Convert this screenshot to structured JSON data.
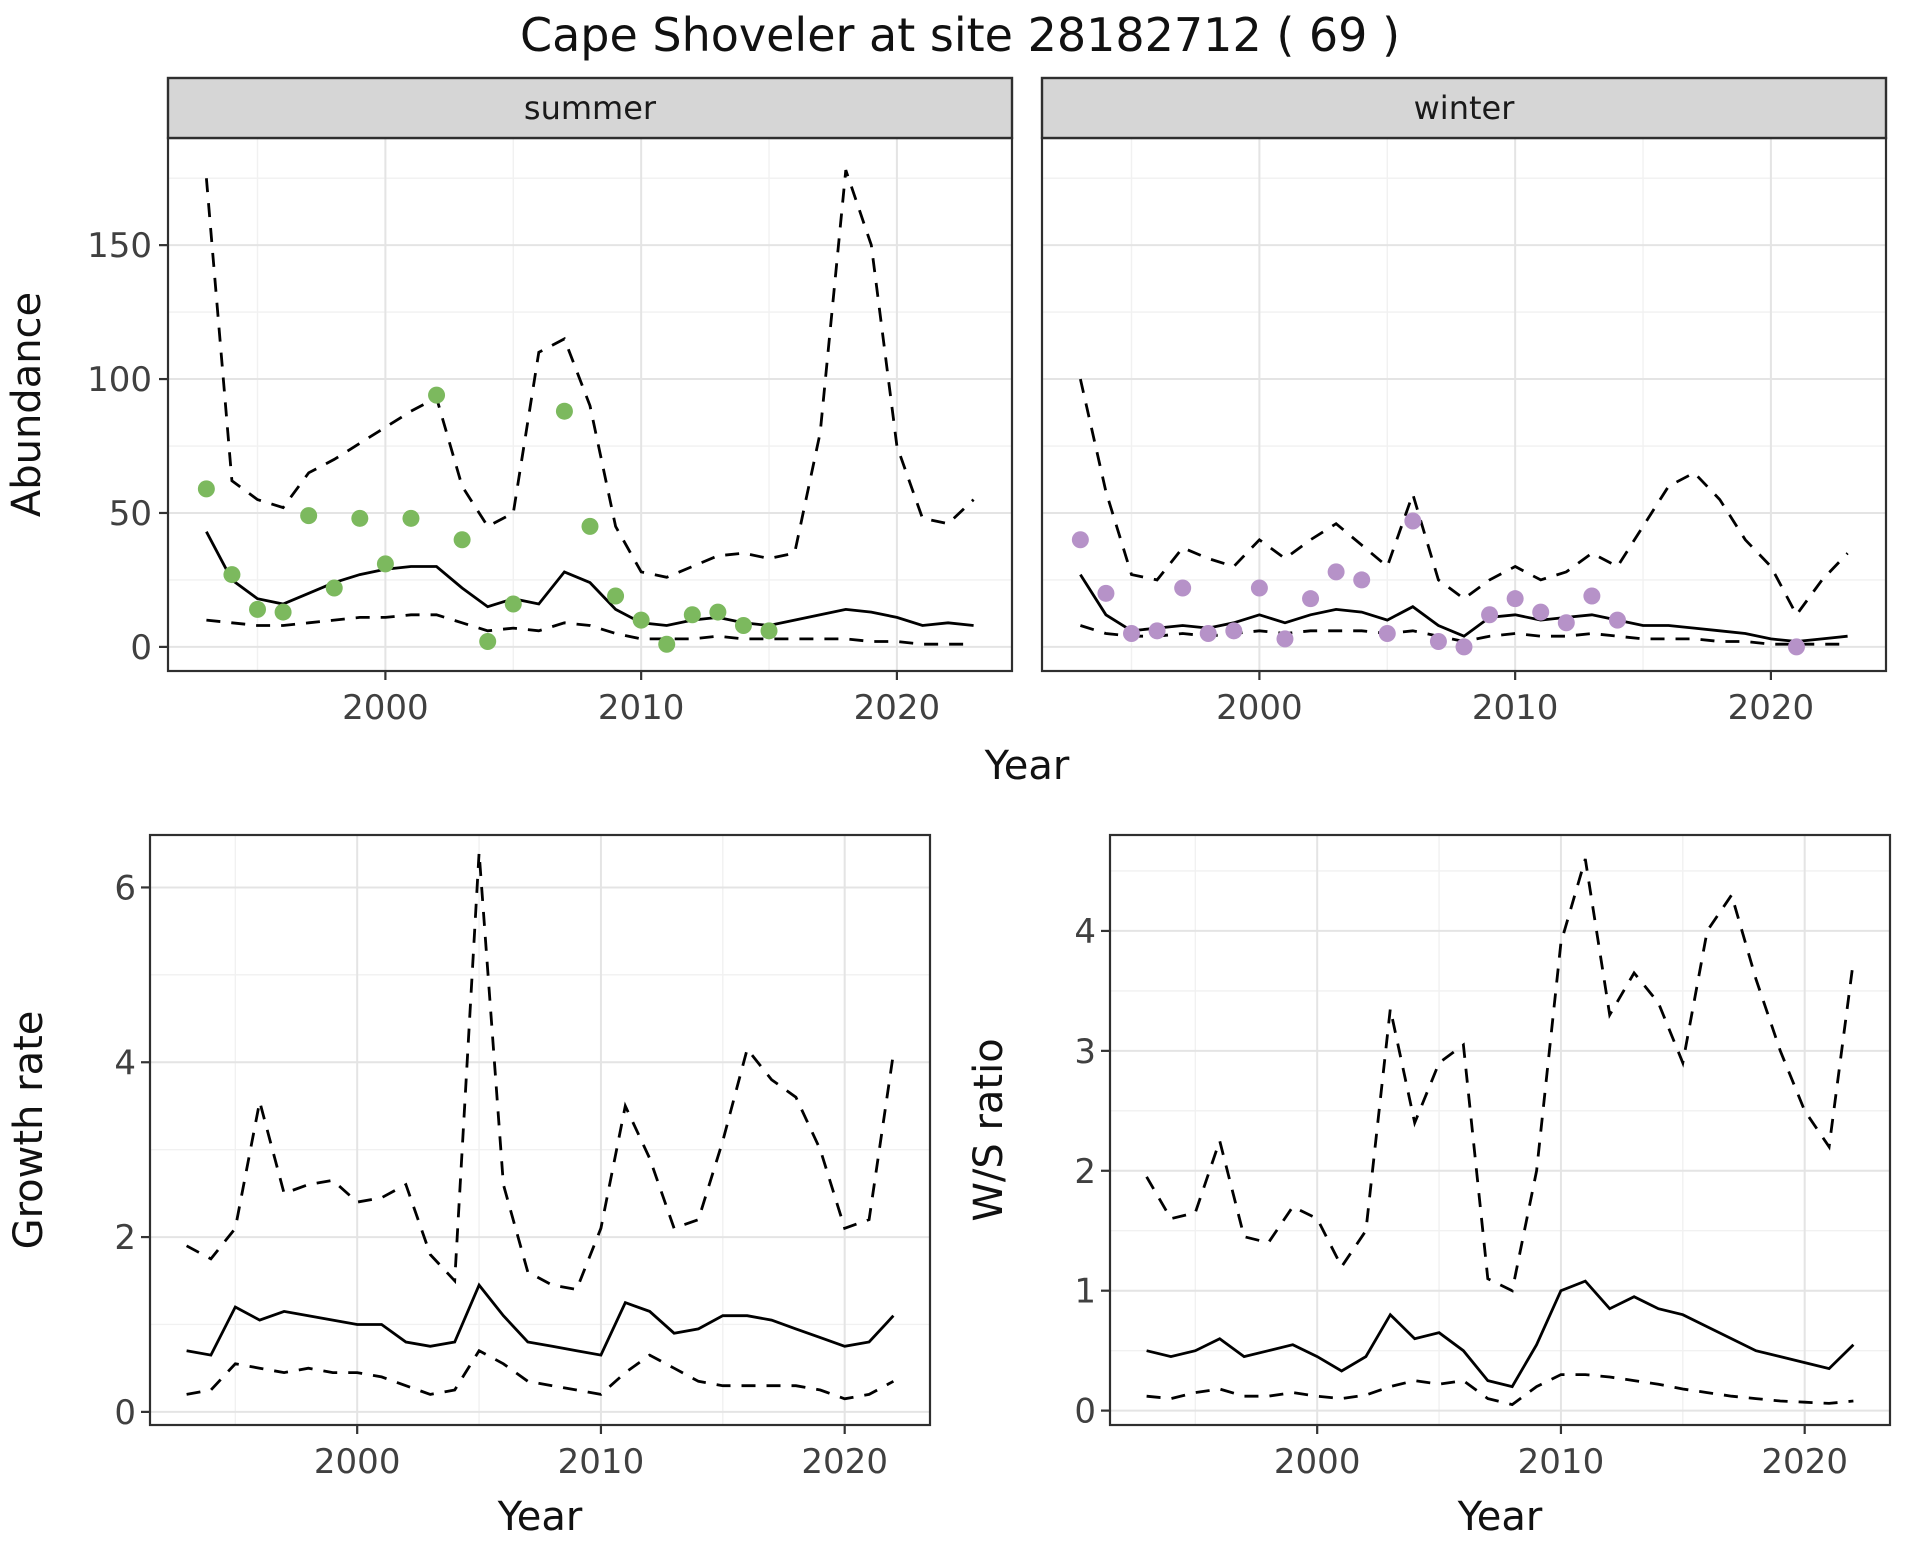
{
  "title": "Cape Shoveler at site 28182712 ( 69 )",
  "theme": {
    "strip_bg": "#d6d6d6",
    "panel_bg": "#ffffff",
    "panel_border": "#2f2f2f",
    "grid_major": "#e4e4e4",
    "grid_minor": "#f1f1f1",
    "axis_text_color": "#404040",
    "axis_title_color": "#111111",
    "line_color": "#000000",
    "summer_point_color": "#7cb95e",
    "winter_point_color": "#b692c8"
  },
  "chart_data": [
    {
      "id": "abundance",
      "type": "line",
      "xlabel": "Year",
      "ylabel": "Abundance",
      "x_ticks": [
        2000,
        2010,
        2020
      ],
      "y_ticks": [
        0,
        50,
        100,
        150
      ],
      "xlim": [
        1991.5,
        2024.5
      ],
      "ylim": [
        -9,
        190
      ],
      "grid": true,
      "legend": "none",
      "facets": [
        {
          "label": "summer",
          "x": [
            1993,
            1994,
            1995,
            1996,
            1997,
            1998,
            1999,
            2000,
            2001,
            2002,
            2003,
            2004,
            2005,
            2006,
            2007,
            2008,
            2009,
            2010,
            2011,
            2012,
            2013,
            2014,
            2015,
            2016,
            2017,
            2018,
            2019,
            2020,
            2021,
            2022,
            2023
          ],
          "fit": [
            43,
            25,
            18,
            16,
            20,
            24,
            27,
            29,
            30,
            30,
            22,
            15,
            18,
            16,
            28,
            24,
            14,
            9,
            8,
            10,
            11,
            9,
            8,
            10,
            12,
            14,
            13,
            11,
            8,
            9,
            8
          ],
          "upper": [
            175,
            62,
            55,
            52,
            65,
            70,
            76,
            82,
            88,
            93,
            60,
            45,
            50,
            110,
            115,
            90,
            45,
            28,
            26,
            30,
            34,
            35,
            33,
            35,
            80,
            178,
            150,
            75,
            48,
            46,
            55
          ],
          "lower": [
            10,
            9,
            8,
            8,
            9,
            10,
            11,
            11,
            12,
            12,
            9,
            6,
            7,
            6,
            9,
            8,
            5,
            3,
            3,
            3,
            4,
            3,
            3,
            3,
            3,
            3,
            2,
            2,
            1,
            1,
            1
          ],
          "points": {
            "x": [
              1993,
              1994,
              1995,
              1996,
              1997,
              1998,
              1999,
              2000,
              2001,
              2002,
              2003,
              2004,
              2005,
              2007,
              2008,
              2009,
              2010,
              2011,
              2012,
              2013,
              2014,
              2015
            ],
            "y": [
              59,
              27,
              14,
              13,
              49,
              22,
              48,
              31,
              48,
              94,
              40,
              2,
              16,
              88,
              45,
              19,
              10,
              1,
              12,
              13,
              8,
              6
            ]
          }
        },
        {
          "label": "winter",
          "x": [
            1993,
            1994,
            1995,
            1996,
            1997,
            1998,
            1999,
            2000,
            2001,
            2002,
            2003,
            2004,
            2005,
            2006,
            2007,
            2008,
            2009,
            2010,
            2011,
            2012,
            2013,
            2014,
            2015,
            2016,
            2017,
            2018,
            2019,
            2020,
            2021,
            2022,
            2023
          ],
          "fit": [
            27,
            12,
            6,
            7,
            8,
            7,
            9,
            12,
            9,
            12,
            14,
            13,
            10,
            15,
            8,
            4,
            11,
            12,
            10,
            11,
            12,
            10,
            8,
            8,
            7,
            6,
            5,
            3,
            2,
            3,
            4
          ],
          "upper": [
            100,
            58,
            27,
            25,
            37,
            33,
            30,
            40,
            33,
            40,
            46,
            38,
            30,
            57,
            25,
            18,
            25,
            30,
            25,
            28,
            35,
            30,
            45,
            60,
            65,
            55,
            40,
            30,
            12,
            25,
            35
          ],
          "lower": [
            8,
            5,
            4,
            4,
            5,
            4,
            5,
            6,
            5,
            6,
            6,
            6,
            5,
            6,
            4,
            2,
            4,
            5,
            4,
            4,
            5,
            4,
            3,
            3,
            3,
            2,
            2,
            1,
            1,
            1,
            1
          ],
          "points": {
            "x": [
              1993,
              1994,
              1995,
              1996,
              1997,
              1998,
              1999,
              2000,
              2001,
              2002,
              2003,
              2004,
              2005,
              2006,
              2007,
              2008,
              2009,
              2010,
              2011,
              2012,
              2013,
              2014,
              2021
            ],
            "y": [
              40,
              20,
              5,
              6,
              22,
              5,
              6,
              22,
              3,
              18,
              28,
              25,
              5,
              47,
              2,
              0,
              12,
              18,
              13,
              9,
              19,
              10,
              0
            ]
          }
        }
      ]
    },
    {
      "id": "growth_rate",
      "type": "line",
      "xlabel": "Year",
      "ylabel": "Growth rate",
      "x_ticks": [
        2000,
        2010,
        2020
      ],
      "y_ticks": [
        0,
        2,
        4,
        6
      ],
      "xlim": [
        1991.5,
        2023.5
      ],
      "ylim": [
        -0.15,
        6.6
      ],
      "grid": true,
      "legend": "none",
      "x": [
        1993,
        1994,
        1995,
        1996,
        1997,
        1998,
        1999,
        2000,
        2001,
        2002,
        2003,
        2004,
        2005,
        2006,
        2007,
        2008,
        2009,
        2010,
        2011,
        2012,
        2013,
        2014,
        2015,
        2016,
        2017,
        2018,
        2019,
        2020,
        2021,
        2022
      ],
      "fit": [
        0.7,
        0.65,
        1.2,
        1.05,
        1.15,
        1.1,
        1.05,
        1.0,
        1.0,
        0.8,
        0.75,
        0.8,
        1.45,
        1.1,
        0.8,
        0.75,
        0.7,
        0.65,
        1.25,
        1.15,
        0.9,
        0.95,
        1.1,
        1.1,
        1.05,
        0.95,
        0.85,
        0.75,
        0.8,
        1.1
      ],
      "upper": [
        1.9,
        1.75,
        2.1,
        3.55,
        2.5,
        2.6,
        2.65,
        2.4,
        2.45,
        2.6,
        1.8,
        1.5,
        6.4,
        2.6,
        1.6,
        1.45,
        1.4,
        2.1,
        3.5,
        2.9,
        2.1,
        2.2,
        3.1,
        4.15,
        3.8,
        3.6,
        3.0,
        2.1,
        2.2,
        4.1
      ],
      "lower": [
        0.2,
        0.25,
        0.55,
        0.5,
        0.45,
        0.5,
        0.45,
        0.45,
        0.4,
        0.3,
        0.2,
        0.25,
        0.7,
        0.55,
        0.35,
        0.3,
        0.25,
        0.2,
        0.45,
        0.65,
        0.5,
        0.35,
        0.3,
        0.3,
        0.3,
        0.3,
        0.25,
        0.15,
        0.2,
        0.35
      ]
    },
    {
      "id": "ws_ratio",
      "type": "line",
      "xlabel": "Year",
      "ylabel": "W/S ratio",
      "x_ticks": [
        2000,
        2010,
        2020
      ],
      "y_ticks": [
        0,
        1,
        2,
        3,
        4
      ],
      "xlim": [
        1991.5,
        2023.5
      ],
      "ylim": [
        -0.12,
        4.8
      ],
      "grid": true,
      "legend": "none",
      "x": [
        1993,
        1994,
        1995,
        1996,
        1997,
        1998,
        1999,
        2000,
        2001,
        2002,
        2003,
        2004,
        2005,
        2006,
        2007,
        2008,
        2009,
        2010,
        2011,
        2012,
        2013,
        2014,
        2015,
        2016,
        2017,
        2018,
        2019,
        2020,
        2021,
        2022
      ],
      "fit": [
        0.5,
        0.45,
        0.5,
        0.6,
        0.45,
        0.5,
        0.55,
        0.45,
        0.33,
        0.45,
        0.8,
        0.6,
        0.65,
        0.5,
        0.25,
        0.2,
        0.55,
        1.0,
        1.08,
        0.85,
        0.95,
        0.85,
        0.8,
        0.7,
        0.6,
        0.5,
        0.45,
        0.4,
        0.35,
        0.55
      ],
      "upper": [
        1.95,
        1.6,
        1.65,
        2.25,
        1.45,
        1.4,
        1.7,
        1.6,
        1.2,
        1.5,
        3.35,
        2.4,
        2.9,
        3.05,
        1.1,
        1.0,
        2.0,
        3.9,
        4.6,
        3.3,
        3.65,
        3.4,
        2.9,
        4.0,
        4.3,
        3.6,
        3.0,
        2.5,
        2.2,
        3.75
      ],
      "lower": [
        0.12,
        0.1,
        0.15,
        0.18,
        0.12,
        0.12,
        0.15,
        0.12,
        0.1,
        0.13,
        0.2,
        0.25,
        0.22,
        0.25,
        0.1,
        0.05,
        0.2,
        0.3,
        0.3,
        0.28,
        0.25,
        0.22,
        0.18,
        0.15,
        0.12,
        0.1,
        0.08,
        0.07,
        0.06,
        0.08
      ]
    }
  ]
}
